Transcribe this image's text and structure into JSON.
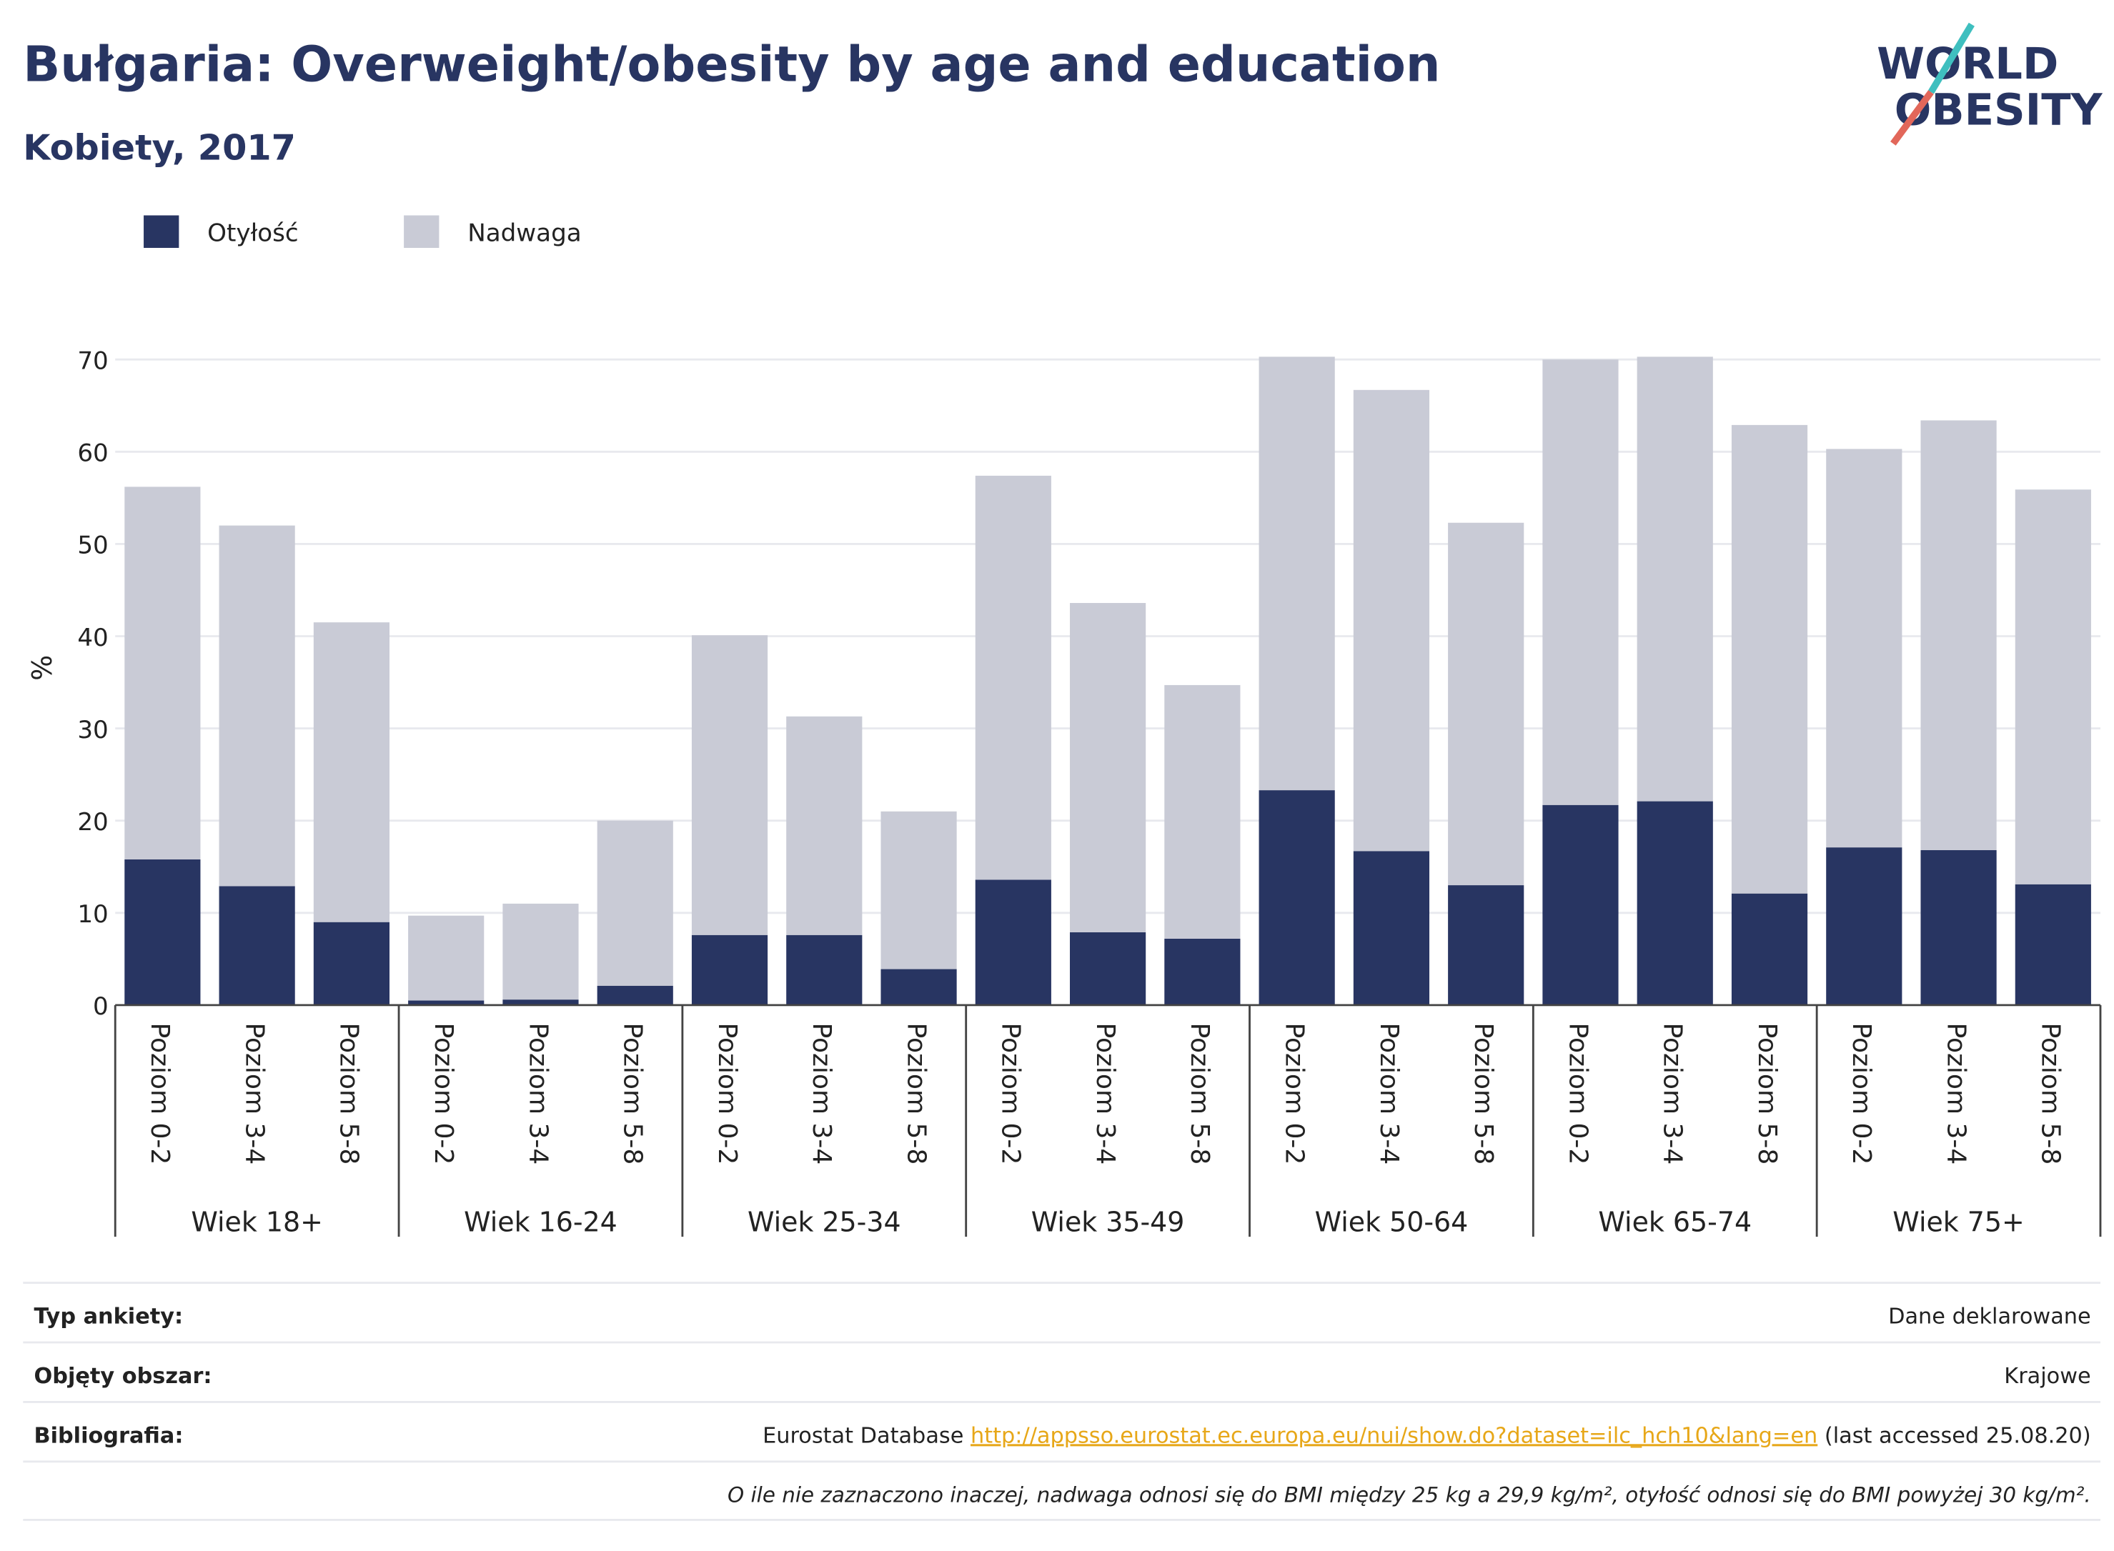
{
  "chart_data": {
    "type": "bar",
    "stacked": true,
    "title": "Bułgaria: Overweight/obesity by age and education",
    "subtitle": "Kobiety, 2017",
    "ylabel": "%",
    "categories": [
      "Poziom 0-2",
      "Poziom 3-4",
      "Poziom 5-8",
      "Poziom 0-2",
      "Poziom 3-4",
      "Poziom 5-8",
      "Poziom 0-2",
      "Poziom 3-4",
      "Poziom 5-8",
      "Poziom 0-2",
      "Poziom 3-4",
      "Poziom 5-8",
      "Poziom 0-2",
      "Poziom 3-4",
      "Poziom 5-8",
      "Poziom 0-2",
      "Poziom 3-4",
      "Poziom 5-8",
      "Poziom 0-2",
      "Poziom 3-4",
      "Poziom 5-8"
    ],
    "groups": [
      "Wiek 18+",
      "Wiek 16-24",
      "Wiek 25-34",
      "Wiek 35-49",
      "Wiek 50-64",
      "Wiek 65-74",
      "Wiek 75+"
    ],
    "series": [
      {
        "name": "Otyłość",
        "color": "#283562",
        "values": [
          15.8,
          12.9,
          9.0,
          0.5,
          0.6,
          2.1,
          7.6,
          7.6,
          3.9,
          13.6,
          7.9,
          7.2,
          23.3,
          16.7,
          13.0,
          21.7,
          22.1,
          12.1,
          17.1,
          16.8,
          13.1
        ]
      },
      {
        "name": "Nadwaga",
        "color": "#c9cbd6",
        "values": [
          40.4,
          39.1,
          32.5,
          9.2,
          10.4,
          17.9,
          32.5,
          23.7,
          17.1,
          43.8,
          35.7,
          27.5,
          47.0,
          50.0,
          39.3,
          48.3,
          48.2,
          50.8,
          43.2,
          46.6,
          42.8
        ]
      }
    ],
    "ylim": [
      0,
      70.5
    ],
    "yticks": [
      0,
      10,
      20,
      30,
      40,
      50,
      60,
      70
    ],
    "grid": true,
    "legend": "top-left"
  },
  "logo": [
    "WORLD",
    "OBESITY"
  ],
  "footer": {
    "rows": [
      {
        "label": "Typ ankiety:",
        "value": "Dane deklarowane"
      },
      {
        "label": "Objęty obszar:",
        "value": "Krajowe"
      },
      {
        "label": "Bibliografia:",
        "value": "Eurostat Database ",
        "link": "http://appsso.eurostat.ec.europa.eu/nui/show.do?dataset=ilc_hch10&lang=en",
        "suffix": " (last accessed 25.08.20)"
      }
    ],
    "note": "O ile nie zaznaczono inaczej, nadwaga odnosi się do BMI między 25 kg a 29,9 kg/m², otyłość odnosi się do BMI powyżej 30 kg/m²."
  }
}
